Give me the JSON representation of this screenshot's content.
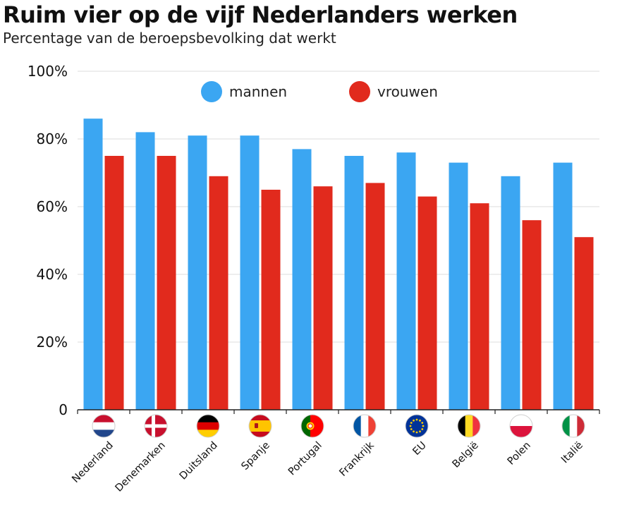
{
  "title": "Ruim vier op de vijf Nederlanders werken",
  "subtitle": "Percentage van de beroepsbevolking dat werkt",
  "colors": {
    "mannen": "#3ba6f2",
    "vrouwen": "#e12a1d",
    "grid": "#dcdcdc",
    "axis": "#222222"
  },
  "chart_data": {
    "type": "bar",
    "categories": [
      "Nederland",
      "Denemarken",
      "Duitsland",
      "Spanje",
      "Portugal",
      "Frankrijk",
      "EU",
      "België",
      "Polen",
      "Italië"
    ],
    "series": [
      {
        "name": "mannen",
        "values": [
          86,
          82,
          81,
          81,
          77,
          75,
          76,
          73,
          69,
          73
        ]
      },
      {
        "name": "vrouwen",
        "values": [
          75,
          75,
          69,
          65,
          66,
          67,
          63,
          61,
          56,
          51
        ]
      }
    ],
    "yticks": [
      "0",
      "20%",
      "40%",
      "60%",
      "80%",
      "100%"
    ],
    "ylim": [
      0,
      100
    ],
    "grid": true,
    "legend": "top",
    "flags": [
      "flag-netherlands-icon",
      "flag-denmark-icon",
      "flag-germany-icon",
      "flag-spain-icon",
      "flag-portugal-icon",
      "flag-france-icon",
      "flag-eu-icon",
      "flag-belgium-icon",
      "flag-poland-icon",
      "flag-italy-icon"
    ]
  }
}
